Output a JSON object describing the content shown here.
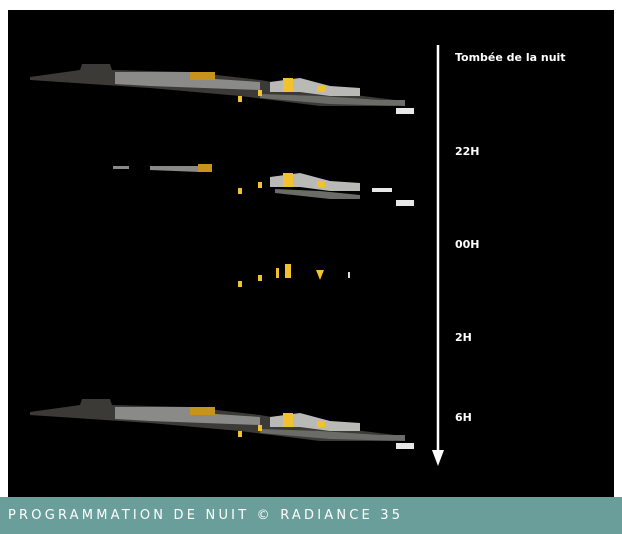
{
  "timeline": {
    "labels": [
      "Tombée de la nuit",
      "22H",
      "00H",
      "2H",
      "6H"
    ]
  },
  "caption": "PROGRAMMATION DE NUIT © RADIANCE 35"
}
